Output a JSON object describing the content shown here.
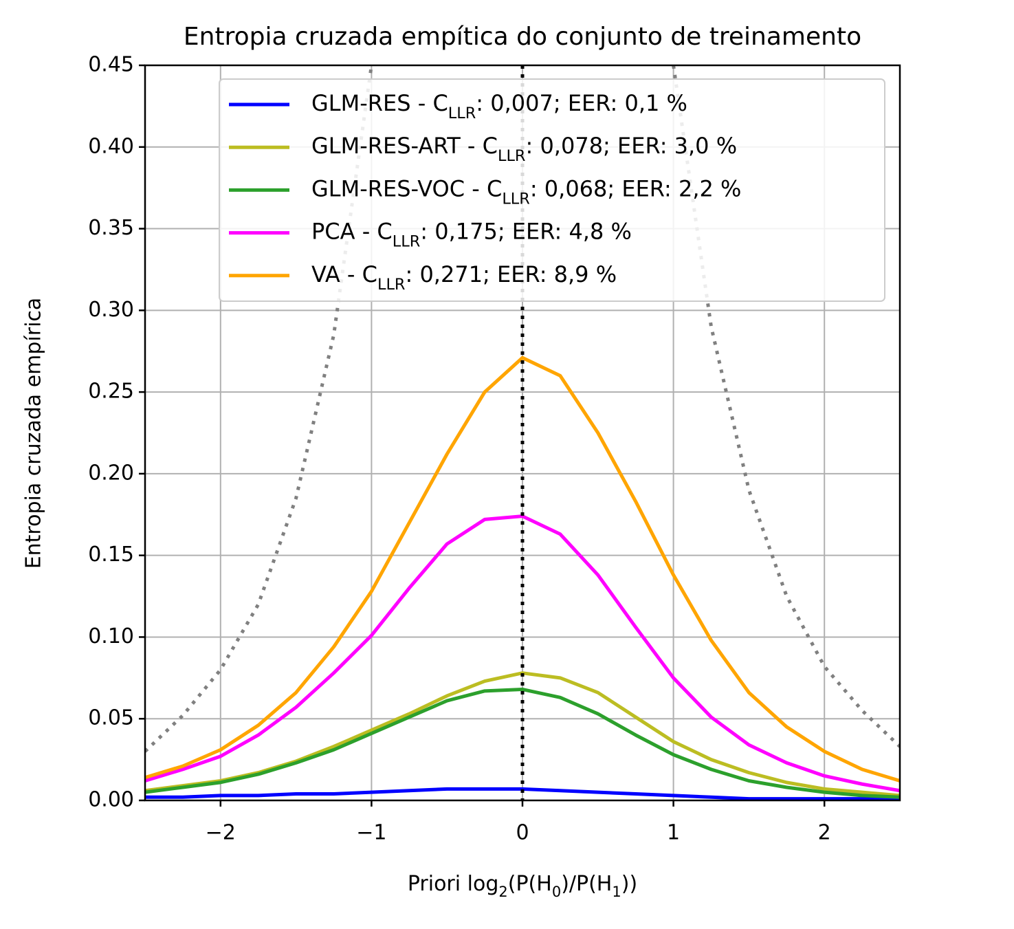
{
  "chart_data": {
    "type": "line",
    "title": "Entropia cruzada empítica do conjunto de treinamento",
    "xlabel": "Priori log_{2}(P(H_{0})/P(H_{1}))",
    "ylabel": "Entropia cruzada empírica",
    "x": [
      -2.5,
      -2.25,
      -2,
      -1.75,
      -1.5,
      -1.25,
      -1,
      -0.75,
      -0.5,
      -0.25,
      0,
      0.25,
      0.5,
      0.75,
      1,
      1.25,
      1.5,
      1.75,
      2,
      2.25,
      2.5
    ],
    "series": [
      {
        "color": "#808080",
        "dash": "dotted",
        "values": [
          0.03,
          0.052,
          0.08,
          0.12,
          0.185,
          0.285,
          0.45,
          null,
          null,
          null,
          null,
          null,
          null,
          null,
          0.45,
          0.29,
          0.19,
          0.125,
          0.082,
          0.055,
          0.033
        ]
      },
      {
        "name": "GLM-RES - C_{LLR}: 0,007; EER: 0,1 %",
        "color": "#0000ff",
        "values": [
          0.002,
          0.002,
          0.003,
          0.003,
          0.004,
          0.004,
          0.005,
          0.006,
          0.007,
          0.007,
          0.007,
          0.006,
          0.005,
          0.004,
          0.003,
          0.002,
          0.001,
          0.001,
          0.001,
          0.001,
          0.001
        ]
      },
      {
        "name": "GLM-RES-ART - C_{LLR}: 0,078; EER: 3,0 %",
        "color": "#bcbd22",
        "values": [
          0.006,
          0.009,
          0.012,
          0.017,
          0.024,
          0.033,
          0.043,
          0.053,
          0.064,
          0.073,
          0.078,
          0.075,
          0.066,
          0.051,
          0.036,
          0.025,
          0.017,
          0.011,
          0.007,
          0.005,
          0.003
        ]
      },
      {
        "name": "GLM-RES-VOC - C_{LLR}: 0,068; EER: 2,2 %",
        "color": "#2ca02c",
        "values": [
          0.005,
          0.008,
          0.011,
          0.016,
          0.023,
          0.031,
          0.041,
          0.051,
          0.061,
          0.067,
          0.068,
          0.063,
          0.053,
          0.04,
          0.028,
          0.019,
          0.012,
          0.008,
          0.005,
          0.003,
          0.002
        ]
      },
      {
        "name": "PCA - C_{LLR}: 0,175; EER: 4,8 %",
        "color": "#ff00ff",
        "values": [
          0.012,
          0.019,
          0.027,
          0.04,
          0.057,
          0.078,
          0.101,
          0.13,
          0.157,
          0.172,
          0.174,
          0.163,
          0.138,
          0.106,
          0.075,
          0.051,
          0.034,
          0.023,
          0.015,
          0.01,
          0.006
        ]
      },
      {
        "name": "VA - C_{LLR}: 0,271; EER: 8,9 %",
        "color": "#ffa500",
        "values": [
          0.014,
          0.021,
          0.031,
          0.046,
          0.066,
          0.094,
          0.128,
          0.17,
          0.212,
          0.25,
          0.271,
          0.26,
          0.225,
          0.183,
          0.138,
          0.098,
          0.066,
          0.045,
          0.03,
          0.019,
          0.012
        ]
      }
    ],
    "vline": 0,
    "xlim": [
      -2.5,
      2.5
    ],
    "ylim": [
      0,
      0.45
    ],
    "xticks": [
      {
        "value": -2,
        "label": "−2"
      },
      {
        "value": -1,
        "label": "−1"
      },
      0,
      1,
      2
    ],
    "yticks": [
      {
        "value": 0,
        "label": "0.00"
      },
      {
        "value": 0.05,
        "label": "0.05"
      },
      {
        "value": 0.1,
        "label": "0.10"
      },
      {
        "value": 0.15,
        "label": "0.15"
      },
      {
        "value": 0.2,
        "label": "0.20"
      },
      {
        "value": 0.25,
        "label": "0.25"
      },
      {
        "value": 0.3,
        "label": "0.30"
      },
      {
        "value": 0.35,
        "label": "0.35"
      },
      {
        "value": 0.4,
        "label": "0.40"
      },
      {
        "value": 0.45,
        "label": "0.45"
      }
    ],
    "grid": true,
    "legend": "upper center"
  }
}
